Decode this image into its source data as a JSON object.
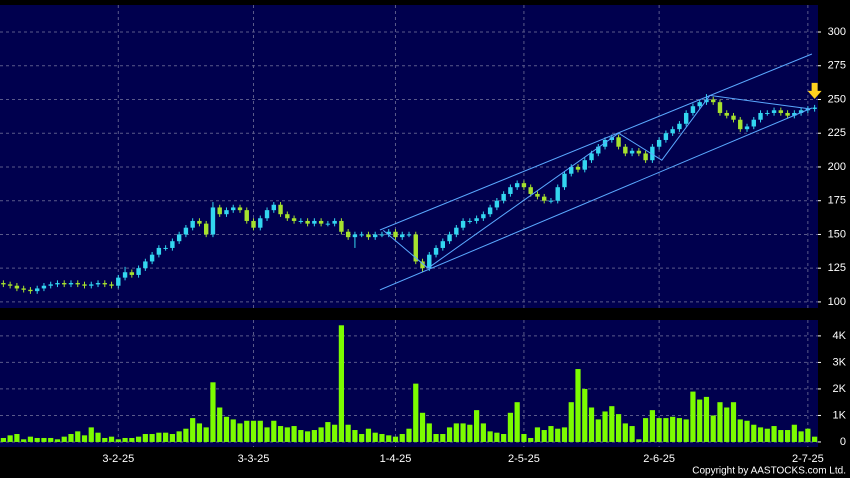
{
  "chart_data": [
    {
      "type": "candlestick",
      "up_color": "#33d6f0",
      "down_color": "#a6e22e",
      "line_color": "#5aa8ff",
      "ylim": [
        95.5,
        320
      ],
      "yticks": [
        100,
        125,
        150,
        175,
        200,
        225,
        250,
        275,
        300
      ],
      "grid": true,
      "open": [
        114,
        113,
        112,
        110,
        109,
        108,
        110,
        112,
        113,
        114,
        113,
        114,
        113,
        112,
        113,
        114,
        113,
        112,
        118,
        122,
        120,
        125,
        130,
        135,
        140,
        140,
        145,
        150,
        155,
        160,
        158,
        150,
        170,
        165,
        168,
        170,
        168,
        160,
        155,
        162,
        168,
        172,
        165,
        162,
        160,
        160,
        158,
        160,
        158,
        158,
        160,
        152,
        148,
        150,
        150,
        148,
        150,
        150,
        152,
        148,
        150,
        150,
        130,
        125,
        135,
        140,
        145,
        150,
        155,
        160,
        160,
        162,
        165,
        170,
        175,
        180,
        185,
        188,
        185,
        180,
        178,
        175,
        175,
        185,
        195,
        200,
        198,
        205,
        210,
        215,
        220,
        222,
        215,
        210,
        212,
        210,
        205,
        215,
        220,
        225,
        228,
        232,
        240,
        245,
        248,
        250,
        248,
        240,
        238,
        235,
        228,
        230,
        235,
        240,
        240,
        242,
        240,
        238,
        240,
        242,
        243
      ],
      "high": [
        116,
        115,
        114,
        112,
        111,
        112,
        114,
        115,
        116,
        116,
        116,
        116,
        115,
        115,
        116,
        116,
        115,
        120,
        126,
        124,
        127,
        132,
        137,
        142,
        142,
        147,
        152,
        157,
        162,
        162,
        160,
        174,
        172,
        170,
        172,
        172,
        170,
        162,
        164,
        170,
        174,
        174,
        167,
        164,
        162,
        162,
        162,
        162,
        160,
        162,
        162,
        154,
        152,
        152,
        152,
        152,
        152,
        154,
        154,
        152,
        152,
        152,
        132,
        137,
        142,
        147,
        152,
        157,
        162,
        162,
        164,
        167,
        172,
        177,
        182,
        187,
        190,
        190,
        187,
        182,
        180,
        177,
        187,
        197,
        202,
        202,
        207,
        212,
        217,
        222,
        224,
        224,
        217,
        214,
        214,
        212,
        217,
        222,
        227,
        230,
        234,
        242,
        247,
        250,
        254,
        252,
        250,
        242,
        240,
        237,
        232,
        237,
        242,
        242,
        244,
        244,
        242,
        242,
        244,
        245,
        246
      ],
      "low": [
        111,
        110,
        108,
        107,
        106,
        106,
        108,
        110,
        111,
        111,
        111,
        111,
        110,
        110,
        111,
        111,
        110,
        110,
        116,
        118,
        118,
        123,
        128,
        133,
        138,
        138,
        143,
        148,
        153,
        156,
        148,
        148,
        163,
        163,
        166,
        166,
        158,
        153,
        153,
        160,
        166,
        163,
        160,
        158,
        158,
        156,
        156,
        156,
        156,
        156,
        150,
        146,
        140,
        148,
        146,
        146,
        148,
        148,
        146,
        146,
        148,
        128,
        122,
        123,
        133,
        138,
        143,
        148,
        153,
        158,
        158,
        160,
        163,
        168,
        173,
        178,
        183,
        183,
        178,
        176,
        173,
        173,
        173,
        183,
        193,
        196,
        196,
        203,
        208,
        213,
        218,
        213,
        208,
        208,
        208,
        203,
        203,
        213,
        218,
        223,
        226,
        230,
        238,
        243,
        246,
        246,
        238,
        236,
        233,
        226,
        226,
        228,
        233,
        238,
        238,
        238,
        236,
        236,
        238,
        240,
        241
      ],
      "close": [
        113,
        112,
        110,
        109,
        108,
        110,
        112,
        113,
        114,
        113,
        114,
        113,
        112,
        113,
        114,
        113,
        112,
        118,
        122,
        120,
        125,
        130,
        135,
        140,
        140,
        145,
        150,
        155,
        160,
        158,
        150,
        170,
        165,
        168,
        170,
        168,
        160,
        155,
        162,
        168,
        172,
        165,
        162,
        160,
        160,
        158,
        160,
        158,
        158,
        160,
        152,
        148,
        150,
        150,
        148,
        150,
        150,
        152,
        148,
        150,
        150,
        130,
        125,
        135,
        140,
        145,
        150,
        155,
        160,
        160,
        162,
        165,
        170,
        175,
        180,
        185,
        188,
        185,
        180,
        178,
        175,
        175,
        185,
        195,
        200,
        198,
        205,
        210,
        215,
        220,
        222,
        215,
        210,
        212,
        210,
        205,
        215,
        220,
        225,
        228,
        232,
        240,
        245,
        248,
        250,
        248,
        240,
        238,
        235,
        228,
        230,
        235,
        240,
        240,
        242,
        240,
        238,
        240,
        242,
        243,
        244
      ],
      "lines": [
        {
          "points": [
            [
              55.7,
              153.3
            ],
            [
              119.6,
              283.7
            ]
          ]
        },
        {
          "points": [
            [
              55.7,
              108.9
            ],
            [
              119.6,
              243.7
            ]
          ]
        },
        {
          "points": [
            [
              56.2,
              153
            ],
            [
              62.8,
              125
            ],
            [
              91,
              225
            ],
            [
              97.4,
              205
            ],
            [
              104.5,
              253
            ],
            [
              119.3,
              243
            ]
          ]
        }
      ]
    },
    {
      "type": "bar",
      "color": "#7cfc00",
      "ylim": [
        -190,
        4600
      ],
      "yticks": [
        0,
        {
          "value": 1000,
          "label": "1K"
        },
        {
          "value": 2000,
          "label": "2K"
        },
        {
          "value": 3000,
          "label": "3K"
        },
        {
          "value": 4000,
          "label": "4K"
        }
      ],
      "grid": true,
      "categories": [
        null,
        null,
        null,
        null,
        null,
        null,
        null,
        null,
        null,
        null,
        null,
        null,
        null,
        null,
        null,
        null,
        null,
        "3-2-25",
        null,
        null,
        null,
        null,
        null,
        null,
        null,
        null,
        null,
        null,
        null,
        null,
        null,
        null,
        null,
        null,
        null,
        null,
        null,
        "3-3-25",
        null,
        null,
        null,
        null,
        null,
        null,
        null,
        null,
        null,
        null,
        null,
        null,
        null,
        null,
        null,
        null,
        null,
        null,
        null,
        null,
        "1-4-25",
        null,
        null,
        null,
        null,
        null,
        null,
        null,
        null,
        null,
        null,
        null,
        null,
        null,
        null,
        null,
        null,
        null,
        null,
        "2-5-25",
        null,
        null,
        null,
        null,
        null,
        null,
        null,
        null,
        null,
        null,
        null,
        null,
        null,
        null,
        null,
        null,
        null,
        null,
        null,
        "2-6-25",
        null,
        null,
        null,
        null,
        null,
        null,
        null,
        null,
        null,
        null,
        null,
        null,
        null,
        null,
        null,
        null,
        null,
        null,
        null,
        null,
        null,
        "2-7-25",
        null
      ],
      "values": [
        150,
        250,
        300,
        100,
        200,
        150,
        150,
        150,
        100,
        200,
        300,
        400,
        250,
        550,
        350,
        150,
        200,
        100,
        150,
        150,
        200,
        300,
        300,
        350,
        350,
        300,
        400,
        500,
        900,
        700,
        550,
        2250,
        1300,
        950,
        850,
        700,
        800,
        800,
        800,
        550,
        800,
        600,
        550,
        600,
        450,
        400,
        450,
        550,
        750,
        650,
        4400,
        650,
        450,
        300,
        500,
        350,
        300,
        250,
        200,
        300,
        500,
        2200,
        1100,
        700,
        300,
        300,
        550,
        700,
        700,
        650,
        1200,
        700,
        400,
        350,
        300,
        1100,
        1500,
        300,
        150,
        550,
        450,
        600,
        500,
        550,
        1500,
        2750,
        2000,
        1300,
        850,
        1150,
        1350,
        1050,
        700,
        600,
        100,
        900,
        1200,
        900,
        900,
        950,
        900,
        850,
        1900,
        1600,
        1700,
        1000,
        1500,
        1300,
        1500,
        850,
        800,
        650,
        550,
        500,
        600,
        450,
        450,
        650,
        400,
        500,
        200
      ]
    }
  ],
  "copyright": "Copyright by AASTOCKS.com Ltd."
}
